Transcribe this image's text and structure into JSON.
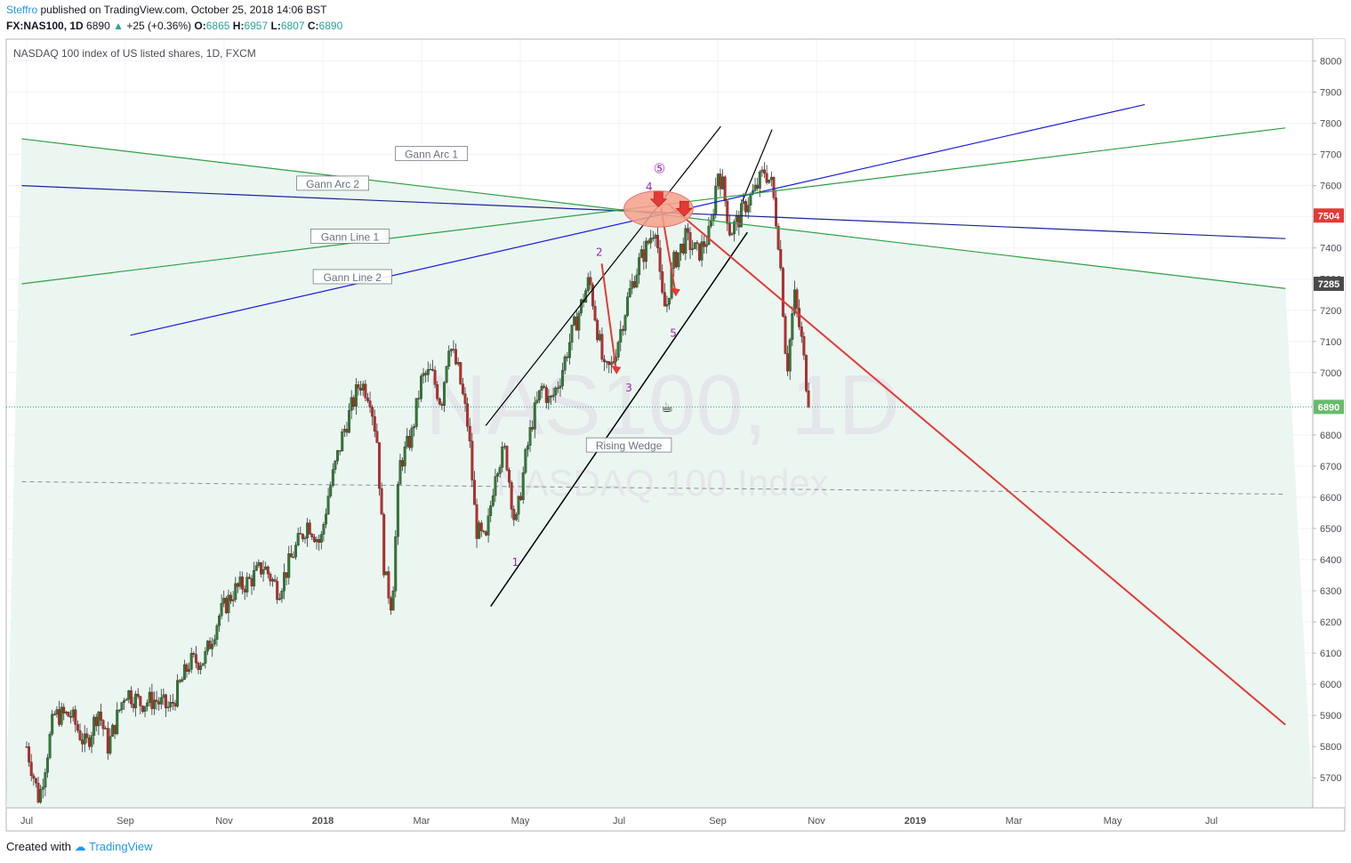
{
  "header": {
    "author": "Steffro",
    "published": "published on TradingView.com, October 25, 2018 14:06 BST",
    "symbol": "FX:NAS100, 1D",
    "last": "6890",
    "change_arrow": "▲",
    "change": "+25 (+0.36%)",
    "o_label": "O:",
    "o_val": "6865",
    "h_label": "H:",
    "h_val": "6957",
    "l_label": "L:",
    "l_val": "6807",
    "c_label": "C:",
    "c_val": "6890"
  },
  "footer": {
    "created": "Created with",
    "brand": "TradingView"
  },
  "chart_data": {
    "type": "candlestick",
    "title": "NASDAQ 100 index of US listed shares, 1D, FXCM",
    "watermark_symbol": "NAS100, 1D",
    "watermark_name": "NASDAQ 100 Index",
    "ylim": [
      5600,
      8060
    ],
    "y_ticks": [
      5700,
      5800,
      5900,
      6000,
      6100,
      6200,
      6300,
      6400,
      6500,
      6600,
      6700,
      6800,
      6900,
      7000,
      7100,
      7200,
      7300,
      7400,
      7500,
      7600,
      7700,
      7800,
      7900,
      8000
    ],
    "x_ticks": [
      {
        "label": "Jul",
        "t": 0.0
      },
      {
        "label": "Sep",
        "t": 2.0
      },
      {
        "label": "Nov",
        "t": 4.0
      },
      {
        "label": "2018",
        "t": 6.0
      },
      {
        "label": "Mar",
        "t": 8.0
      },
      {
        "label": "May",
        "t": 10.0
      },
      {
        "label": "Jul",
        "t": 12.0
      },
      {
        "label": "Sep",
        "t": 14.0
      },
      {
        "label": "Nov",
        "t": 16.0
      },
      {
        "label": "2019",
        "t": 18.0
      },
      {
        "label": "Mar",
        "t": 20.0
      },
      {
        "label": "May",
        "t": 22.0
      },
      {
        "label": "Jul",
        "t": 24.0
      }
    ],
    "x_unit": "months since 2017-07-01",
    "price_labels": [
      {
        "value": 7504,
        "color": "#e53935"
      },
      {
        "value": 7285,
        "color": "#4a4a4a"
      },
      {
        "value": 6890,
        "color": "#66bb6a"
      }
    ],
    "current_price_line": 6890,
    "dashed_level": {
      "from": [
        -0.1,
        6650
      ],
      "to": [
        25.5,
        6610
      ]
    },
    "anchors": [
      [
        0,
        5800
      ],
      [
        0.25,
        5630
      ],
      [
        0.55,
        5900
      ],
      [
        0.9,
        5900
      ],
      [
        1.2,
        5800
      ],
      [
        1.45,
        5920
      ],
      [
        1.65,
        5800
      ],
      [
        2.0,
        5980
      ],
      [
        2.3,
        5940
      ],
      [
        2.6,
        5950
      ],
      [
        2.9,
        5920
      ],
      [
        3.3,
        6070
      ],
      [
        3.6,
        6080
      ],
      [
        3.9,
        6220
      ],
      [
        4.2,
        6300
      ],
      [
        4.5,
        6330
      ],
      [
        4.8,
        6380
      ],
      [
        5.1,
        6300
      ],
      [
        5.4,
        6420
      ],
      [
        5.7,
        6520
      ],
      [
        5.95,
        6450
      ],
      [
        6.1,
        6600
      ],
      [
        6.4,
        6800
      ],
      [
        6.75,
        6970
      ],
      [
        6.95,
        6930
      ],
      [
        7.1,
        6780
      ],
      [
        7.25,
        6350
      ],
      [
        7.4,
        6250
      ],
      [
        7.55,
        6700
      ],
      [
        7.8,
        6800
      ],
      [
        8.0,
        6980
      ],
      [
        8.2,
        7000
      ],
      [
        8.4,
        6900
      ],
      [
        8.55,
        7100
      ],
      [
        8.75,
        7000
      ],
      [
        8.95,
        6820
      ],
      [
        9.1,
        6500
      ],
      [
        9.3,
        6450
      ],
      [
        9.5,
        6700
      ],
      [
        9.7,
        6750
      ],
      [
        9.9,
        6500
      ],
      [
        10.1,
        6720
      ],
      [
        10.25,
        6850
      ],
      [
        10.45,
        6960
      ],
      [
        10.6,
        6900
      ],
      [
        10.8,
        6980
      ],
      [
        11.0,
        7100
      ],
      [
        11.2,
        7200
      ],
      [
        11.4,
        7300
      ],
      [
        11.55,
        7150
      ],
      [
        11.7,
        7000
      ],
      [
        11.85,
        7020
      ],
      [
        12.05,
        7150
      ],
      [
        12.2,
        7250
      ],
      [
        12.4,
        7350
      ],
      [
        12.55,
        7400
      ],
      [
        12.75,
        7480
      ],
      [
        12.85,
        7250
      ],
      [
        12.95,
        7200
      ],
      [
        13.1,
        7350
      ],
      [
        13.35,
        7430
      ],
      [
        13.6,
        7380
      ],
      [
        13.85,
        7450
      ],
      [
        14.0,
        7650
      ],
      [
        14.1,
        7600
      ],
      [
        14.25,
        7450
      ],
      [
        14.45,
        7500
      ],
      [
        14.6,
        7550
      ],
      [
        14.75,
        7580
      ],
      [
        14.95,
        7650
      ],
      [
        15.1,
        7600
      ],
      [
        15.25,
        7400
      ],
      [
        15.4,
        7000
      ],
      [
        15.55,
        7250
      ],
      [
        15.7,
        7100
      ],
      [
        15.85,
        6890
      ]
    ],
    "pattern_lines": [
      {
        "from": [
          9.4,
          6250
        ],
        "to": [
          14.6,
          7450
        ],
        "color": "#000000",
        "width": 1.5
      },
      {
        "from": [
          9.3,
          6830
        ],
        "to": [
          14.06,
          7790
        ],
        "color": "#000000",
        "width": 1.2
      },
      {
        "from": [
          14.5,
          7550
        ],
        "to": [
          15.1,
          7780
        ],
        "color": "#000000",
        "width": 1.2
      },
      {
        "from": [
          13.0,
          7540
        ],
        "to": [
          25.5,
          5870
        ],
        "color": "#e53935",
        "width": 2
      },
      {
        "from": [
          11.65,
          7350
        ],
        "to": [
          11.95,
          7000
        ],
        "color": "#e53935",
        "width": 2
      },
      {
        "from": [
          12.85,
          7530
        ],
        "to": [
          13.15,
          7250
        ],
        "color": "#e53935",
        "width": 2
      },
      {
        "from": [
          2.1,
          7120
        ],
        "to": [
          22.65,
          7860
        ],
        "color": "#1a1adb",
        "width": 1.2
      },
      {
        "from": [
          -0.1,
          7600
        ],
        "to": [
          25.5,
          7430
        ],
        "color": "#1a2496",
        "width": 1.2
      },
      {
        "from": [
          -0.1,
          7285
        ],
        "to": [
          25.5,
          7785
        ],
        "color": "#2ea043",
        "width": 1.2
      },
      {
        "from": [
          -0.1,
          7750
        ],
        "to": [
          25.5,
          7270
        ],
        "color": "#2ea043",
        "width": 1.2
      }
    ],
    "highlight_ellipse": {
      "cx": 12.8,
      "cy": 7525,
      "rx_months": 0.7,
      "ry_price": 58,
      "color": "#f4a08a"
    },
    "arrows": [
      {
        "t": 12.8,
        "v": 7580
      },
      {
        "t": 13.32,
        "v": 7550
      }
    ],
    "wave_labels": [
      {
        "text": "1",
        "t": 9.9,
        "v": 6380
      },
      {
        "text": "2",
        "t": 11.6,
        "v": 7375
      },
      {
        "text": "3",
        "t": 12.2,
        "v": 6940
      },
      {
        "text": "4",
        "t": 12.61,
        "v": 7585
      },
      {
        "text": "5",
        "t": 13.1,
        "v": 7115
      },
      {
        "text": "⑤",
        "t": 12.82,
        "v": 7640
      }
    ],
    "text_labels": [
      {
        "text": "Gann Arc 1",
        "t": 8.2,
        "v": 7700
      },
      {
        "text": "Gann Arc 2",
        "t": 6.2,
        "v": 7605
      },
      {
        "text": "Gann Line 1",
        "t": 6.55,
        "v": 7435
      },
      {
        "text": "Gann Line 2",
        "t": 6.6,
        "v": 7305
      },
      {
        "text": "Rising Wedge",
        "t": 12.2,
        "v": 6765
      }
    ]
  }
}
